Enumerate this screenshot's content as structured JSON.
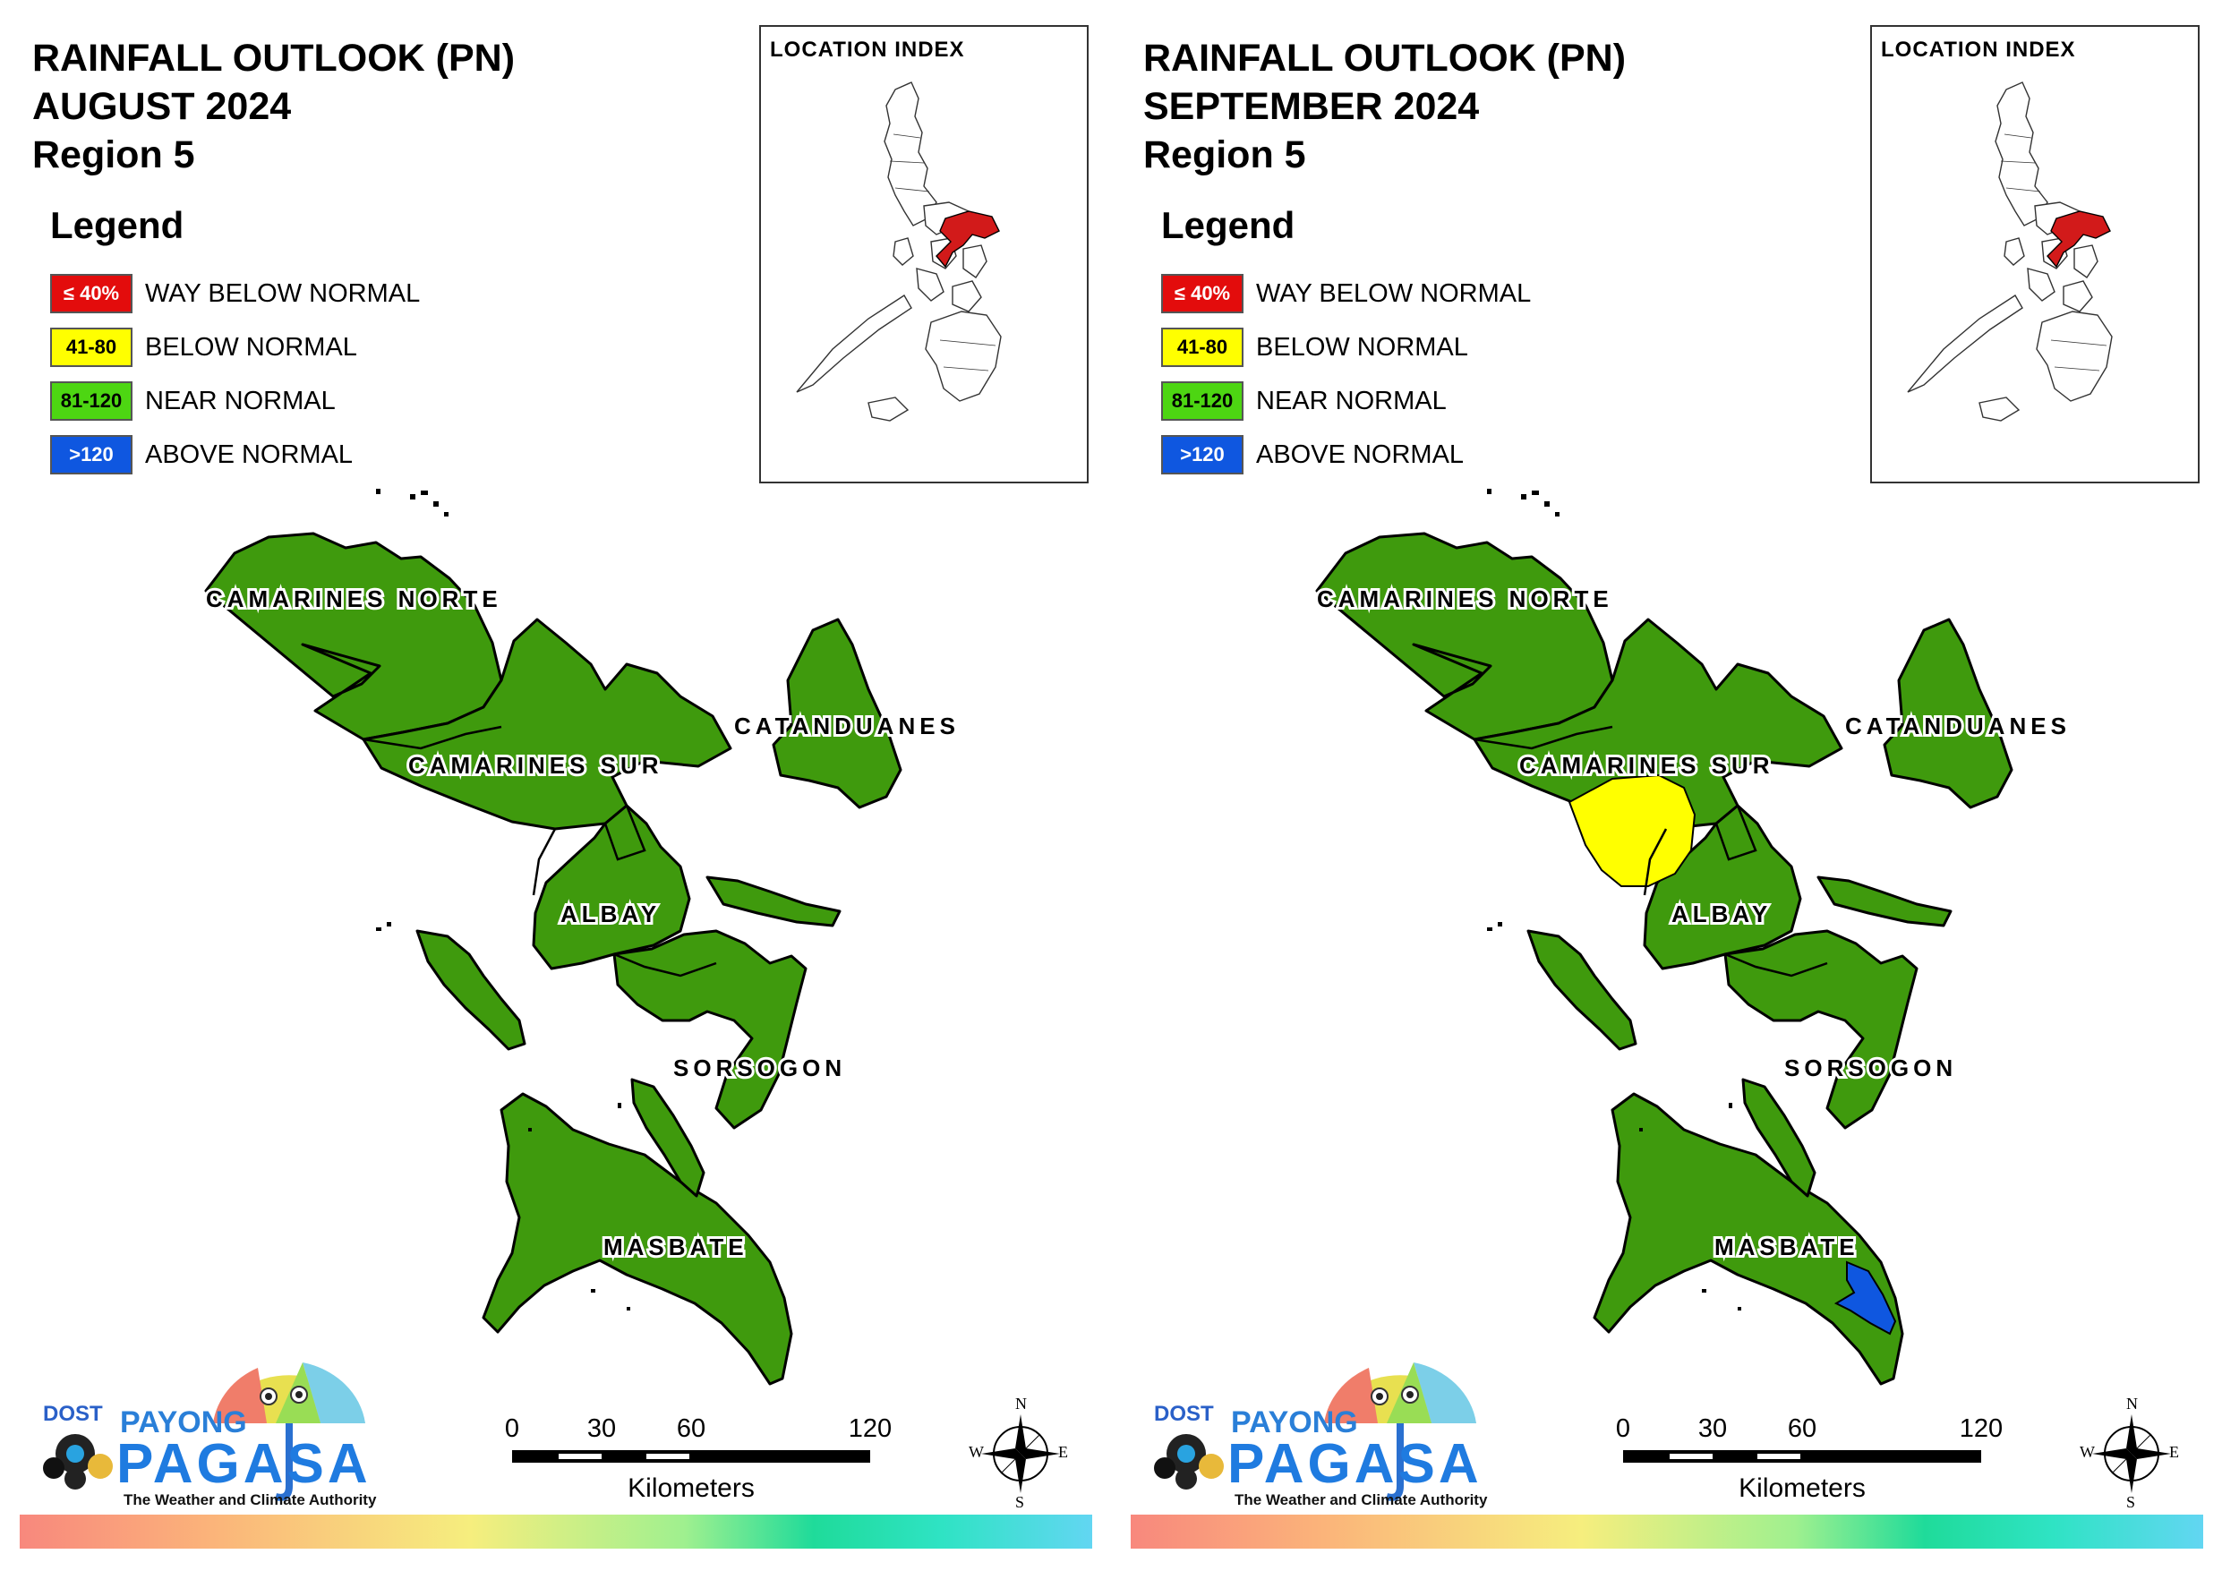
{
  "legend": {
    "title": "Legend",
    "items": [
      {
        "code": "≤ 40%",
        "label": "WAY BELOW NORMAL",
        "color": "#e30c0c",
        "text_color": "#ffffff"
      },
      {
        "code": "41-80",
        "label": "BELOW NORMAL",
        "color": "#ffff00",
        "text_color": "#000000"
      },
      {
        "code": "81-120",
        "label": "NEAR NORMAL",
        "color": "#4dd612",
        "text_color": "#000000"
      },
      {
        "code": ">120",
        "label": "ABOVE NORMAL",
        "color": "#0f57e0",
        "text_color": "#ffffff"
      }
    ]
  },
  "location_index": {
    "title": "LOCATION INDEX",
    "highlight_color": "#d21a1a"
  },
  "provinces": {
    "camarines_norte": "CAMARINES NORTE",
    "camarines_sur": "CAMARINES SUR",
    "catanduanes": "CATANDUANES",
    "albay": "ALBAY",
    "sorsogon": "SORSOGON",
    "masbate": "MASBATE"
  },
  "map_colors": {
    "near_normal_fill": "#3f9a0d",
    "below_normal_fill": "#ffff00",
    "above_normal_fill": "#0f57e0",
    "outline": "#000000"
  },
  "panels": [
    {
      "title_line1": "RAINFALL OUTLOOK (PN)",
      "title_line2": "AUGUST 2024",
      "title_line3": "Region 5"
    },
    {
      "title_line1": "RAINFALL OUTLOOK (PN)",
      "title_line2": "SEPTEMBER 2024",
      "title_line3": "Region 5"
    }
  ],
  "scale_bar": {
    "ticks": [
      "0",
      "30",
      "60",
      "120"
    ],
    "unit": "Kilometers"
  },
  "compass": {
    "n": "N",
    "s": "S",
    "e": "E",
    "w": "W"
  },
  "logo": {
    "dost": "DOST",
    "payong": "PAYONG",
    "pagasa": "PAGASA",
    "tagline": "The Weather and Climate Authority"
  }
}
